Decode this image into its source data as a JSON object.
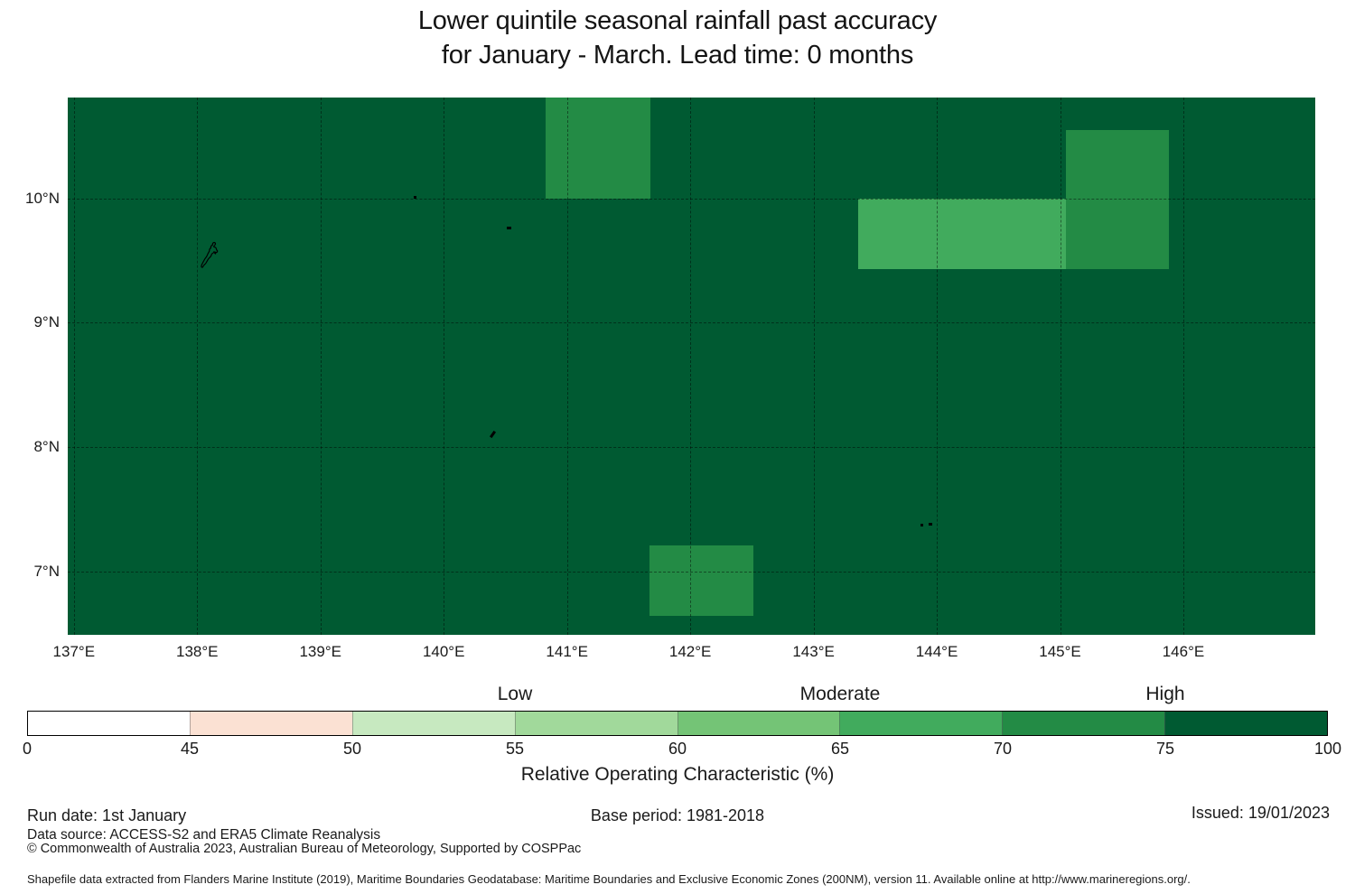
{
  "title": {
    "line1": "Lower quintile seasonal rainfall past accuracy",
    "line2": "for January - March. Lead time: 0 months"
  },
  "chart_data": {
    "type": "heatmap",
    "subtype": "geographic choropleth of ROC accuracy on lon/lat grid",
    "extent": {
      "lon_min": 136.95,
      "lon_max": 147.07,
      "lat_min": 6.49,
      "lat_max": 10.81
    },
    "x_ticks": [
      {
        "label": "137°E",
        "lon": 137
      },
      {
        "label": "138°E",
        "lon": 138
      },
      {
        "label": "139°E",
        "lon": 139
      },
      {
        "label": "140°E",
        "lon": 140
      },
      {
        "label": "141°E",
        "lon": 141
      },
      {
        "label": "142°E",
        "lon": 142
      },
      {
        "label": "143°E",
        "lon": 143
      },
      {
        "label": "144°E",
        "lon": 144
      },
      {
        "label": "145°E",
        "lon": 145
      },
      {
        "label": "146°E",
        "lon": 146
      }
    ],
    "y_ticks": [
      {
        "label": "10°N",
        "lat": 10
      },
      {
        "label": "9°N",
        "lat": 9
      },
      {
        "label": "8°N",
        "lat": 8
      },
      {
        "label": "7°N",
        "lat": 7
      }
    ],
    "grid": true,
    "background_roc_bin": "75-100",
    "background_color": "#005a32",
    "regions": [
      {
        "lon_min": 140.83,
        "lon_max": 141.68,
        "lat_min": 10.0,
        "lat_max": 10.81,
        "roc_bin": "70-75",
        "color": "#238b45"
      },
      {
        "lon_min": 143.36,
        "lon_max": 145.05,
        "lat_min": 9.43,
        "lat_max": 10.0,
        "roc_bin": "65-70",
        "color": "#41ab5d"
      },
      {
        "lon_min": 145.05,
        "lon_max": 145.88,
        "lat_min": 9.43,
        "lat_max": 10.55,
        "roc_bin": "70-75",
        "color": "#238b45"
      },
      {
        "lon_min": 141.67,
        "lon_max": 142.51,
        "lat_min": 6.64,
        "lat_max": 7.21,
        "roc_bin": "70-75",
        "color": "#238b45"
      }
    ],
    "islands": [
      {
        "name": "palau-main-group",
        "kind": "outline",
        "lon": 138.0,
        "lat": 9.66,
        "w": 30,
        "h": 40
      },
      {
        "name": "islet-north-1",
        "kind": "dot",
        "lon": 139.76,
        "lat": 10.02,
        "w": 3,
        "h": 3
      },
      {
        "name": "islet-ngulu",
        "kind": "dot",
        "lon": 140.51,
        "lat": 9.77,
        "w": 5,
        "h": 3
      },
      {
        "name": "islet-sonsorol",
        "kind": "stroke",
        "lon": 140.39,
        "lat": 8.13,
        "w": 3,
        "h": 8
      },
      {
        "name": "islet-south-1",
        "kind": "dot",
        "lon": 143.87,
        "lat": 7.38,
        "w": 3,
        "h": 3
      },
      {
        "name": "islet-south-2",
        "kind": "dot",
        "lon": 143.93,
        "lat": 7.39,
        "w": 4,
        "h": 3
      }
    ],
    "colorbar": {
      "boundaries": [
        0,
        45,
        50,
        55,
        60,
        65,
        70,
        75,
        100
      ],
      "segment_colors": [
        "#ffffff",
        "#fbe1d3",
        "#c7e9c0",
        "#a1d99b",
        "#74c476",
        "#41ab5d",
        "#238b45",
        "#005a32"
      ],
      "categories": [
        {
          "label": "Low",
          "at_value": 55
        },
        {
          "label": "Moderate",
          "at_value": 65
        },
        {
          "label": "High",
          "at_value": 75
        }
      ],
      "axis_label": "Relative Operating Characteristic (%)"
    }
  },
  "footer": {
    "run_date": "Run date: 1st January",
    "base_period": "Base period: 1981-2018",
    "issued": "Issued: 19/01/2023",
    "data_source": "Data source: ACCESS-S2 and ERA5 Climate Reanalysis",
    "copyright": "© Commonwealth of Australia 2023, Australian Bureau of Meteorology, Supported by COSPPac",
    "shapefile_note": "Shapefile data extracted from Flanders Marine Institute (2019), Maritime Boundaries Geodatabase: Maritime Boundaries and Exclusive Economic Zones (200NM), version 11. Available online at http://www.marineregions.org/."
  }
}
